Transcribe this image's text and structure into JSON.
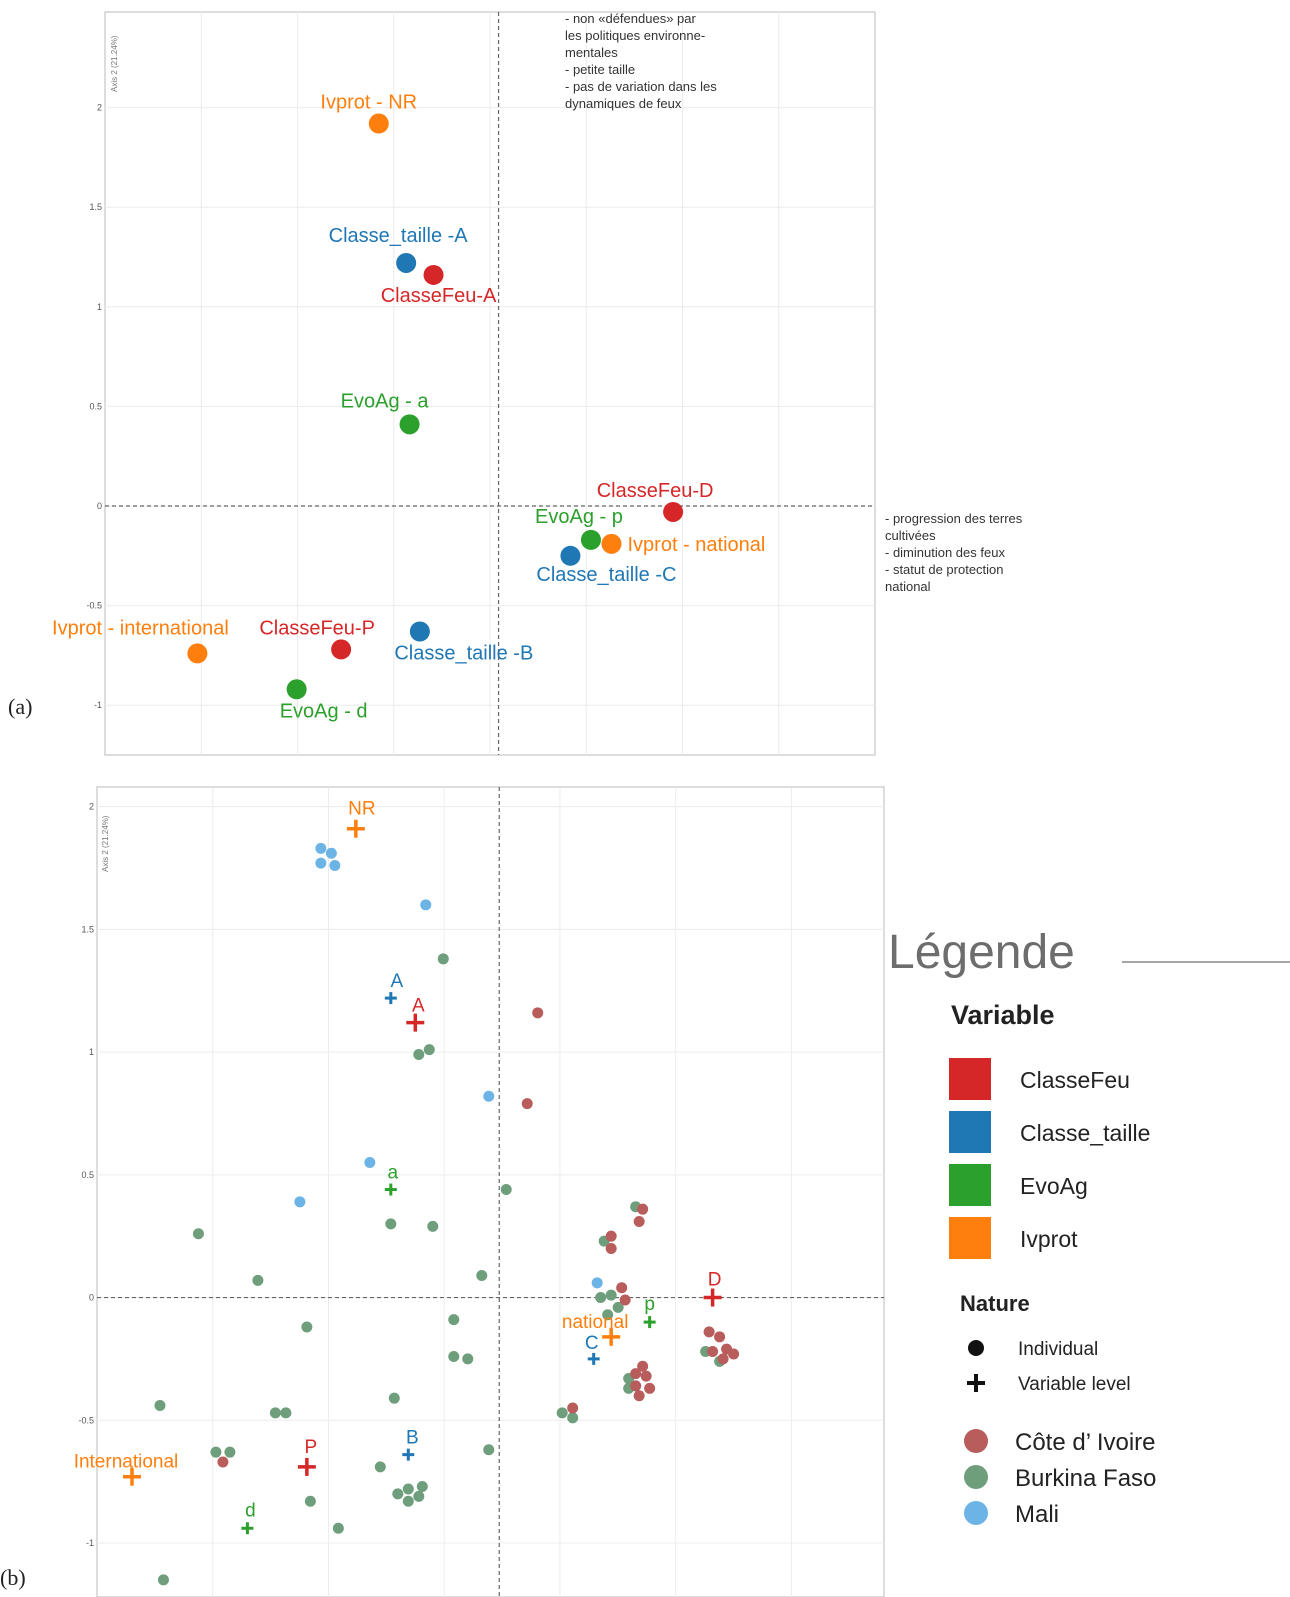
{
  "colors": {
    "ClasseFeu": "#d62728",
    "Classe_taille": "#1f77b4",
    "EvoAg": "#2ca02c",
    "Ivprot": "#ff7f0e",
    "cote_divoire": "#b85c5c",
    "burkina_faso": "#6e9e7c",
    "mali": "#6cb4e6"
  },
  "chart_data": [
    {
      "type": "scatter",
      "panel_label": "(a)",
      "ylabel": "Axis 2 (21.24%)",
      "yticks": [
        "2",
        "1.5",
        "1",
        "0.5",
        "0",
        "-0.5",
        "-1"
      ],
      "xlim": [
        -1.15,
        1.1
      ],
      "ylim": [
        -1.25,
        2.48
      ],
      "annotation_top": [
        "- non «défendues» par",
        "les politiques environne-",
        "mentales",
        "- petite taille",
        "- pas de variation dans les",
        "dynamiques de feux"
      ],
      "annotation_right": [
        "- progression des terres",
        "cultivées",
        "- diminution des feux",
        "- statut de protection",
        "national"
      ],
      "points": [
        {
          "label": "Ivprot - NR",
          "variable": "Ivprot",
          "x": -0.35,
          "y": 1.92
        },
        {
          "label": "Classe_taille -A",
          "variable": "Classe_taille",
          "x": -0.27,
          "y": 1.22
        },
        {
          "label": "ClasseFeu-A",
          "variable": "ClasseFeu",
          "x": -0.19,
          "y": 1.16
        },
        {
          "label": "EvoAg - a",
          "variable": "EvoAg",
          "x": -0.26,
          "y": 0.41
        },
        {
          "label": "ClasseFeu-D",
          "variable": "ClasseFeu",
          "x": 0.51,
          "y": -0.03
        },
        {
          "label": "EvoAg - p",
          "variable": "EvoAg",
          "x": 0.27,
          "y": -0.17
        },
        {
          "label": "Ivprot - national",
          "variable": "Ivprot",
          "x": 0.33,
          "y": -0.19
        },
        {
          "label": "Classe_taille -C",
          "variable": "Classe_taille",
          "x": 0.21,
          "y": -0.25
        },
        {
          "label": "Classe_taille -B",
          "variable": "Classe_taille",
          "x": -0.23,
          "y": -0.63
        },
        {
          "label": "ClasseFeu-P",
          "variable": "ClasseFeu",
          "x": -0.46,
          "y": -0.72
        },
        {
          "label": "Ivprot - international",
          "variable": "Ivprot",
          "x": -0.88,
          "y": -0.74
        },
        {
          "label": "EvoAg - d",
          "variable": "EvoAg",
          "x": -0.59,
          "y": -0.92
        }
      ]
    },
    {
      "type": "scatter",
      "panel_label": "(b)",
      "ylabel": "Axis 2 (21.24%)",
      "yticks": [
        "2",
        "1.5",
        "1",
        "0.5",
        "0",
        "-0.5",
        "-1"
      ],
      "xlim": [
        -1.15,
        1.1
      ],
      "ylim": [
        -1.22,
        2.08
      ],
      "variable_levels": [
        {
          "label": "NR",
          "variable": "Ivprot",
          "x": -0.41,
          "y": 1.91
        },
        {
          "label": "A",
          "variable": "Classe_taille",
          "x": -0.31,
          "y": 1.22
        },
        {
          "label": "A",
          "variable": "ClasseFeu",
          "x": -0.24,
          "y": 1.12
        },
        {
          "label": "a",
          "variable": "EvoAg",
          "x": -0.31,
          "y": 0.44
        },
        {
          "label": "D",
          "variable": "ClasseFeu",
          "x": 0.61,
          "y": 0.0
        },
        {
          "label": "p",
          "variable": "EvoAg",
          "x": 0.43,
          "y": -0.1
        },
        {
          "label": "national",
          "variable": "Ivprot",
          "x": 0.32,
          "y": -0.16
        },
        {
          "label": "C",
          "variable": "Classe_taille",
          "x": 0.27,
          "y": -0.25
        },
        {
          "label": "B",
          "variable": "Classe_taille",
          "x": -0.26,
          "y": -0.64
        },
        {
          "label": "P",
          "variable": "ClasseFeu",
          "x": -0.55,
          "y": -0.69
        },
        {
          "label": "International",
          "variable": "Ivprot",
          "x": -1.05,
          "y": -0.73
        },
        {
          "label": "d",
          "variable": "EvoAg",
          "x": -0.72,
          "y": -0.94
        }
      ],
      "individuals": {
        "Mali": [
          [
            -0.51,
            1.83
          ],
          [
            -0.48,
            1.81
          ],
          [
            -0.51,
            1.77
          ],
          [
            -0.47,
            1.76
          ],
          [
            -0.21,
            1.6
          ],
          [
            -0.03,
            0.82
          ],
          [
            -0.37,
            0.55
          ],
          [
            -0.57,
            0.39
          ],
          [
            0.28,
            0.06
          ],
          [
            0.39,
            -0.36
          ]
        ],
        "Burkina Faso": [
          [
            -0.16,
            1.38
          ],
          [
            -0.23,
            0.99
          ],
          [
            -0.2,
            1.01
          ],
          [
            0.02,
            0.44
          ],
          [
            -0.31,
            0.3
          ],
          [
            -0.19,
            0.29
          ],
          [
            -0.86,
            0.26
          ],
          [
            -0.69,
            0.07
          ],
          [
            -0.05,
            0.09
          ],
          [
            -0.55,
            -0.12
          ],
          [
            -0.13,
            -0.09
          ],
          [
            -0.13,
            -0.24
          ],
          [
            -0.09,
            -0.25
          ],
          [
            -0.3,
            -0.41
          ],
          [
            -0.64,
            -0.47
          ],
          [
            -0.61,
            -0.47
          ],
          [
            -0.97,
            -0.44
          ],
          [
            -0.81,
            -0.63
          ],
          [
            -0.77,
            -0.63
          ],
          [
            -0.34,
            -0.69
          ],
          [
            -0.29,
            -0.8
          ],
          [
            -0.26,
            -0.83
          ],
          [
            -0.23,
            -0.81
          ],
          [
            -0.22,
            -0.77
          ],
          [
            -0.26,
            -0.78
          ],
          [
            -0.03,
            -0.62
          ],
          [
            -0.54,
            -0.83
          ],
          [
            -0.46,
            -0.94
          ],
          [
            -0.96,
            -1.15
          ],
          [
            0.29,
            0.0
          ],
          [
            0.32,
            0.01
          ],
          [
            0.34,
            -0.04
          ],
          [
            0.31,
            -0.07
          ],
          [
            0.3,
            0.23
          ],
          [
            0.39,
            0.37
          ],
          [
            0.37,
            -0.33
          ],
          [
            0.37,
            -0.37
          ],
          [
            0.59,
            -0.22
          ],
          [
            0.63,
            -0.26
          ],
          [
            0.18,
            -0.47
          ],
          [
            0.21,
            -0.49
          ]
        ],
        "Côte d' Ivoire": [
          [
            0.11,
            1.16
          ],
          [
            0.08,
            0.79
          ],
          [
            0.32,
            0.25
          ],
          [
            0.32,
            0.2
          ],
          [
            0.41,
            0.36
          ],
          [
            0.4,
            0.31
          ],
          [
            0.35,
            0.04
          ],
          [
            0.36,
            -0.01
          ],
          [
            0.41,
            -0.28
          ],
          [
            0.39,
            -0.31
          ],
          [
            0.42,
            -0.32
          ],
          [
            0.39,
            -0.36
          ],
          [
            0.43,
            -0.37
          ],
          [
            0.4,
            -0.4
          ],
          [
            0.6,
            -0.14
          ],
          [
            0.63,
            -0.16
          ],
          [
            0.61,
            -0.22
          ],
          [
            0.65,
            -0.21
          ],
          [
            0.67,
            -0.23
          ],
          [
            0.64,
            -0.25
          ],
          [
            0.21,
            -0.45
          ],
          [
            -0.79,
            -0.67
          ]
        ]
      }
    }
  ],
  "legend": {
    "title": "Légende",
    "variable_heading": "Variable",
    "variables": [
      {
        "label": "ClasseFeu",
        "key": "ClasseFeu"
      },
      {
        "label": "Classe_taille",
        "key": "Classe_taille"
      },
      {
        "label": "EvoAg",
        "key": "EvoAg"
      },
      {
        "label": "Ivprot",
        "key": "Ivprot"
      }
    ],
    "nature_heading": "Nature",
    "nature": [
      {
        "label": "Individual",
        "shape": "dot"
      },
      {
        "label": "Variable level",
        "shape": "cross"
      }
    ],
    "countries": [
      {
        "label": "Côte d’ Ivoire",
        "key": "cote_divoire"
      },
      {
        "label": "Burkina Faso",
        "key": "burkina_faso"
      },
      {
        "label": "Mali",
        "key": "mali"
      }
    ]
  }
}
